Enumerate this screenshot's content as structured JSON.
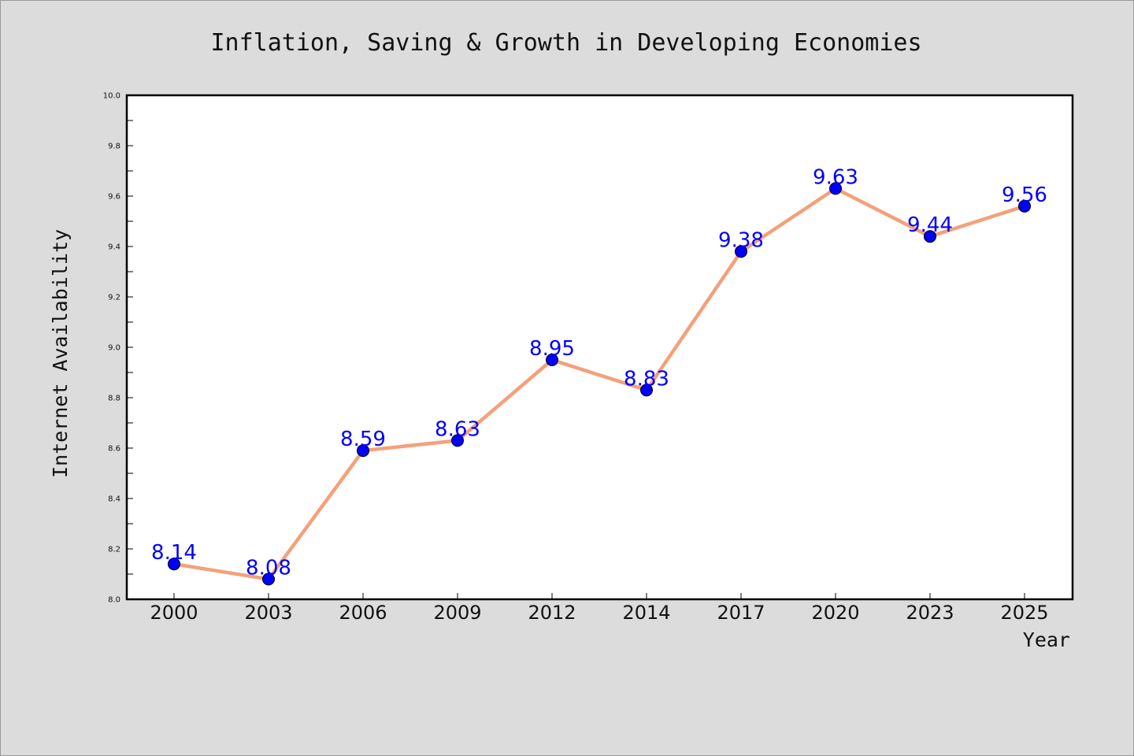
{
  "chart_data": {
    "type": "line",
    "title": "Inflation, Saving & Growth in Developing Economies",
    "xlabel": "Year",
    "ylabel": "Internet Availability",
    "categories": [
      "2000",
      "2003",
      "2006",
      "2009",
      "2012",
      "2014",
      "2017",
      "2020",
      "2023",
      "2025"
    ],
    "series": [
      {
        "values": [
          8.14,
          8.08,
          8.59,
          8.63,
          8.95,
          8.83,
          9.38,
          9.63,
          9.44,
          9.56
        ]
      }
    ],
    "data_labels": [
      "8.14",
      "8.08",
      "8.59",
      "8.63",
      "8.95",
      "8.83",
      "9.38",
      "9.63",
      "9.44",
      "9.56"
    ],
    "ylim": [
      8.0,
      10.0
    ],
    "yticks": [
      8.0,
      8.2,
      8.4,
      8.6,
      8.8,
      9.0,
      9.2,
      9.4,
      9.6,
      9.8,
      10.0
    ],
    "ytick_labels": [
      "8.0",
      "8.2",
      "8.4",
      "8.6",
      "8.8",
      "9.0",
      "9.2",
      "9.4",
      "9.6",
      "9.8",
      "10.0"
    ],
    "grid": false,
    "legend": "none",
    "colors": {
      "background": "#dcdcdc",
      "plot_background": "#ffffff",
      "line": "#f5a07a",
      "marker_fill": "#0000ff",
      "marker_edge": "#000000",
      "data_label": "#0000ff"
    }
  }
}
